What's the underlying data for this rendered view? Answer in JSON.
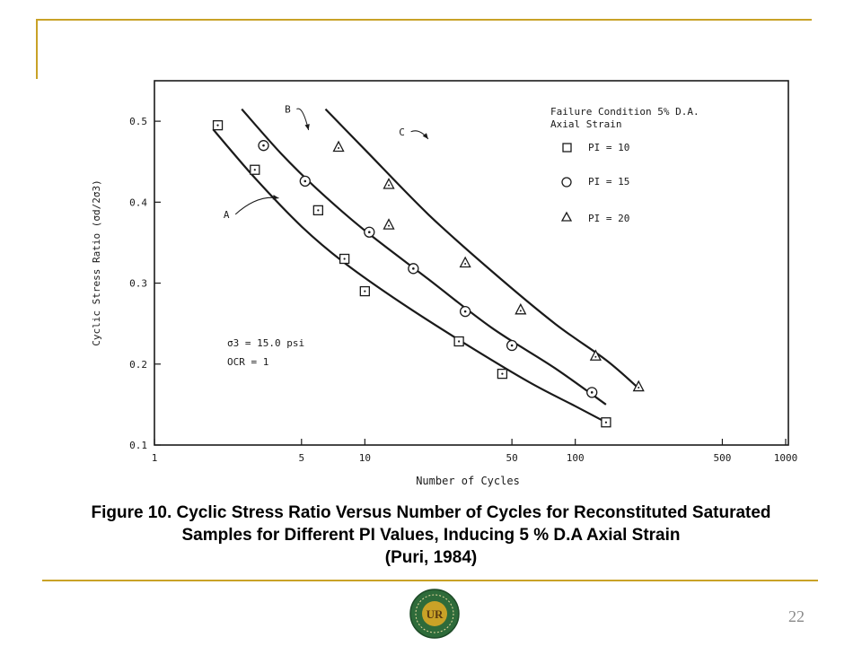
{
  "slide": {
    "caption_lines": [
      "Figure 10. Cyclic Stress Ratio Versus Number of Cycles for Reconstituted Saturated",
      "Samples for Different PI Values, Inducing 5 % D.A Axial Strain",
      "(Puri, 1984)"
    ],
    "page_number": "22",
    "logo_text": "UR",
    "colors": {
      "rule": "#c9a227",
      "logo_ring": "#2e6b3a",
      "logo_center": "#c9a227",
      "ink": "#1a1a1a"
    }
  },
  "chart_data": {
    "type": "scatter",
    "xlabel": "Number of Cycles",
    "ylabel": "Cyclic Stress Ratio (σd/2σ3)",
    "x_scale": "log",
    "xlim": [
      1,
      1000
    ],
    "ylim": [
      0.1,
      0.55
    ],
    "x_ticks": [
      1,
      5,
      10,
      50,
      100,
      500,
      1000
    ],
    "y_ticks": [
      0.1,
      0.2,
      0.3,
      0.4,
      0.5
    ],
    "x_tick_labels": [
      "1",
      "5",
      "10",
      "50",
      "100",
      "500",
      "1000"
    ],
    "y_tick_labels": [
      "0.1",
      "0.2",
      "0.3",
      "0.4",
      "0.5"
    ],
    "grid": false,
    "legend": {
      "placement": "top-right",
      "title_lines": [
        "Failure Condition 5% D.A.",
        "Axial Strain"
      ],
      "entries": [
        "PI = 10",
        "PI = 15",
        "PI = 20"
      ]
    },
    "annotations": {
      "conditions": [
        "σ3 = 15.0 psi",
        "OCR = 1"
      ]
    },
    "series": [
      {
        "name": "PI = 10",
        "marker": "square",
        "points": [
          {
            "x": 2.0,
            "y": 0.495
          },
          {
            "x": 3.0,
            "y": 0.44
          },
          {
            "x": 6.0,
            "y": 0.39
          },
          {
            "x": 8.0,
            "y": 0.33
          },
          {
            "x": 10.0,
            "y": 0.29
          },
          {
            "x": 28.0,
            "y": 0.228
          },
          {
            "x": 45.0,
            "y": 0.188
          },
          {
            "x": 140.0,
            "y": 0.128
          }
        ],
        "curve": [
          [
            1.9,
            0.49
          ],
          [
            3.0,
            0.43
          ],
          [
            5.0,
            0.37
          ],
          [
            8.0,
            0.325
          ],
          [
            15.0,
            0.275
          ],
          [
            30.0,
            0.225
          ],
          [
            60.0,
            0.178
          ],
          [
            100.0,
            0.148
          ],
          [
            140.0,
            0.128
          ]
        ]
      },
      {
        "name": "PI = 15",
        "marker": "circle",
        "points": [
          {
            "x": 3.3,
            "y": 0.47
          },
          {
            "x": 5.2,
            "y": 0.426
          },
          {
            "x": 10.5,
            "y": 0.363
          },
          {
            "x": 17.0,
            "y": 0.318
          },
          {
            "x": 30.0,
            "y": 0.265
          },
          {
            "x": 50.0,
            "y": 0.223
          },
          {
            "x": 120.0,
            "y": 0.165
          }
        ],
        "curve": [
          [
            2.6,
            0.515
          ],
          [
            4.0,
            0.46
          ],
          [
            6.0,
            0.415
          ],
          [
            10.0,
            0.365
          ],
          [
            20.0,
            0.305
          ],
          [
            40.0,
            0.245
          ],
          [
            80.0,
            0.195
          ],
          [
            140.0,
            0.15
          ]
        ]
      },
      {
        "name": "PI = 20",
        "marker": "triangle",
        "points": [
          {
            "x": 7.5,
            "y": 0.468
          },
          {
            "x": 13.0,
            "y": 0.422
          },
          {
            "x": 13.0,
            "y": 0.372
          },
          {
            "x": 30.0,
            "y": 0.325
          },
          {
            "x": 55.0,
            "y": 0.267
          },
          {
            "x": 125.0,
            "y": 0.21
          },
          {
            "x": 200.0,
            "y": 0.172
          }
        ],
        "curve": [
          [
            6.5,
            0.515
          ],
          [
            10.0,
            0.465
          ],
          [
            20.0,
            0.385
          ],
          [
            40.0,
            0.315
          ],
          [
            80.0,
            0.25
          ],
          [
            140.0,
            0.205
          ],
          [
            200.0,
            0.17
          ]
        ]
      }
    ],
    "curve_labels": [
      {
        "text": "A",
        "x": 2.2,
        "y": 0.385
      },
      {
        "text": "B",
        "x": 4.3,
        "y": 0.515
      },
      {
        "text": "C",
        "x": 15.0,
        "y": 0.487
      }
    ]
  }
}
